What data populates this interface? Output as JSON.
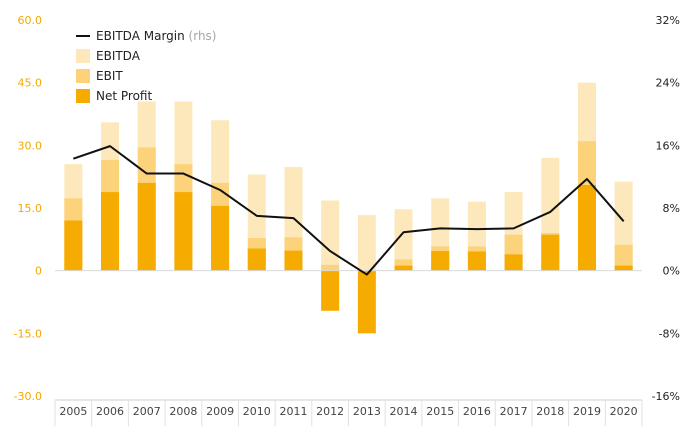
{
  "chart_data": {
    "type": "bar",
    "categories": [
      "2005",
      "2006",
      "2007",
      "2008",
      "2009",
      "2010",
      "2011",
      "2012",
      "2013",
      "2014",
      "2015",
      "2016",
      "2017",
      "2018",
      "2019",
      "2020"
    ],
    "series": [
      {
        "name": "EBITDA",
        "type": "bar",
        "axis": "left",
        "color": "#fde8bb",
        "values": [
          25.5,
          35.5,
          40.5,
          40.5,
          36.0,
          23.0,
          24.8,
          16.8,
          13.3,
          14.7,
          17.3,
          16.5,
          18.8,
          27.0,
          45.0,
          21.3
        ]
      },
      {
        "name": "EBIT",
        "type": "bar",
        "axis": "left",
        "color": "#fcd37a",
        "values": [
          17.3,
          26.5,
          29.5,
          25.5,
          21.0,
          7.8,
          8.0,
          1.4,
          0.0,
          2.7,
          5.8,
          5.8,
          8.6,
          9.0,
          31.0,
          6.2
        ]
      },
      {
        "name": "Net Profit",
        "type": "bar",
        "axis": "left",
        "color": "#f5ab00",
        "values": [
          12.0,
          18.8,
          21.0,
          18.8,
          15.5,
          5.3,
          4.8,
          -9.6,
          -15.0,
          1.2,
          4.7,
          4.6,
          3.9,
          8.6,
          20.5,
          1.2
        ]
      },
      {
        "name": "EBITDA Margin",
        "legend_suffix": "(rhs)",
        "type": "line",
        "axis": "right",
        "color": "#111111",
        "values": [
          14.3,
          15.9,
          12.4,
          12.4,
          10.3,
          7.0,
          6.7,
          2.5,
          -0.5,
          4.9,
          5.4,
          5.3,
          5.4,
          7.5,
          11.7,
          6.3
        ]
      }
    ],
    "left_axis": {
      "min": -30,
      "max": 60,
      "ticks": [
        -30,
        -15,
        0,
        15,
        30,
        45,
        60
      ],
      "tick_labels": [
        "-30.0",
        "-15.0",
        "0",
        "15.0",
        "30.0",
        "45.0",
        "60.0"
      ],
      "color": "#f2a900"
    },
    "right_axis": {
      "min": -16,
      "max": 32,
      "ticks": [
        -16,
        -8,
        0,
        8,
        16,
        24,
        32
      ],
      "tick_labels": [
        "-16%",
        "-8%",
        "0%",
        "8%",
        "16%",
        "24%",
        "32%"
      ],
      "color": "#222222"
    },
    "legend_placement": "top-left",
    "legend_order": [
      "EBITDA Margin",
      "EBITDA",
      "EBIT",
      "Net Profit"
    ],
    "grid": false
  }
}
